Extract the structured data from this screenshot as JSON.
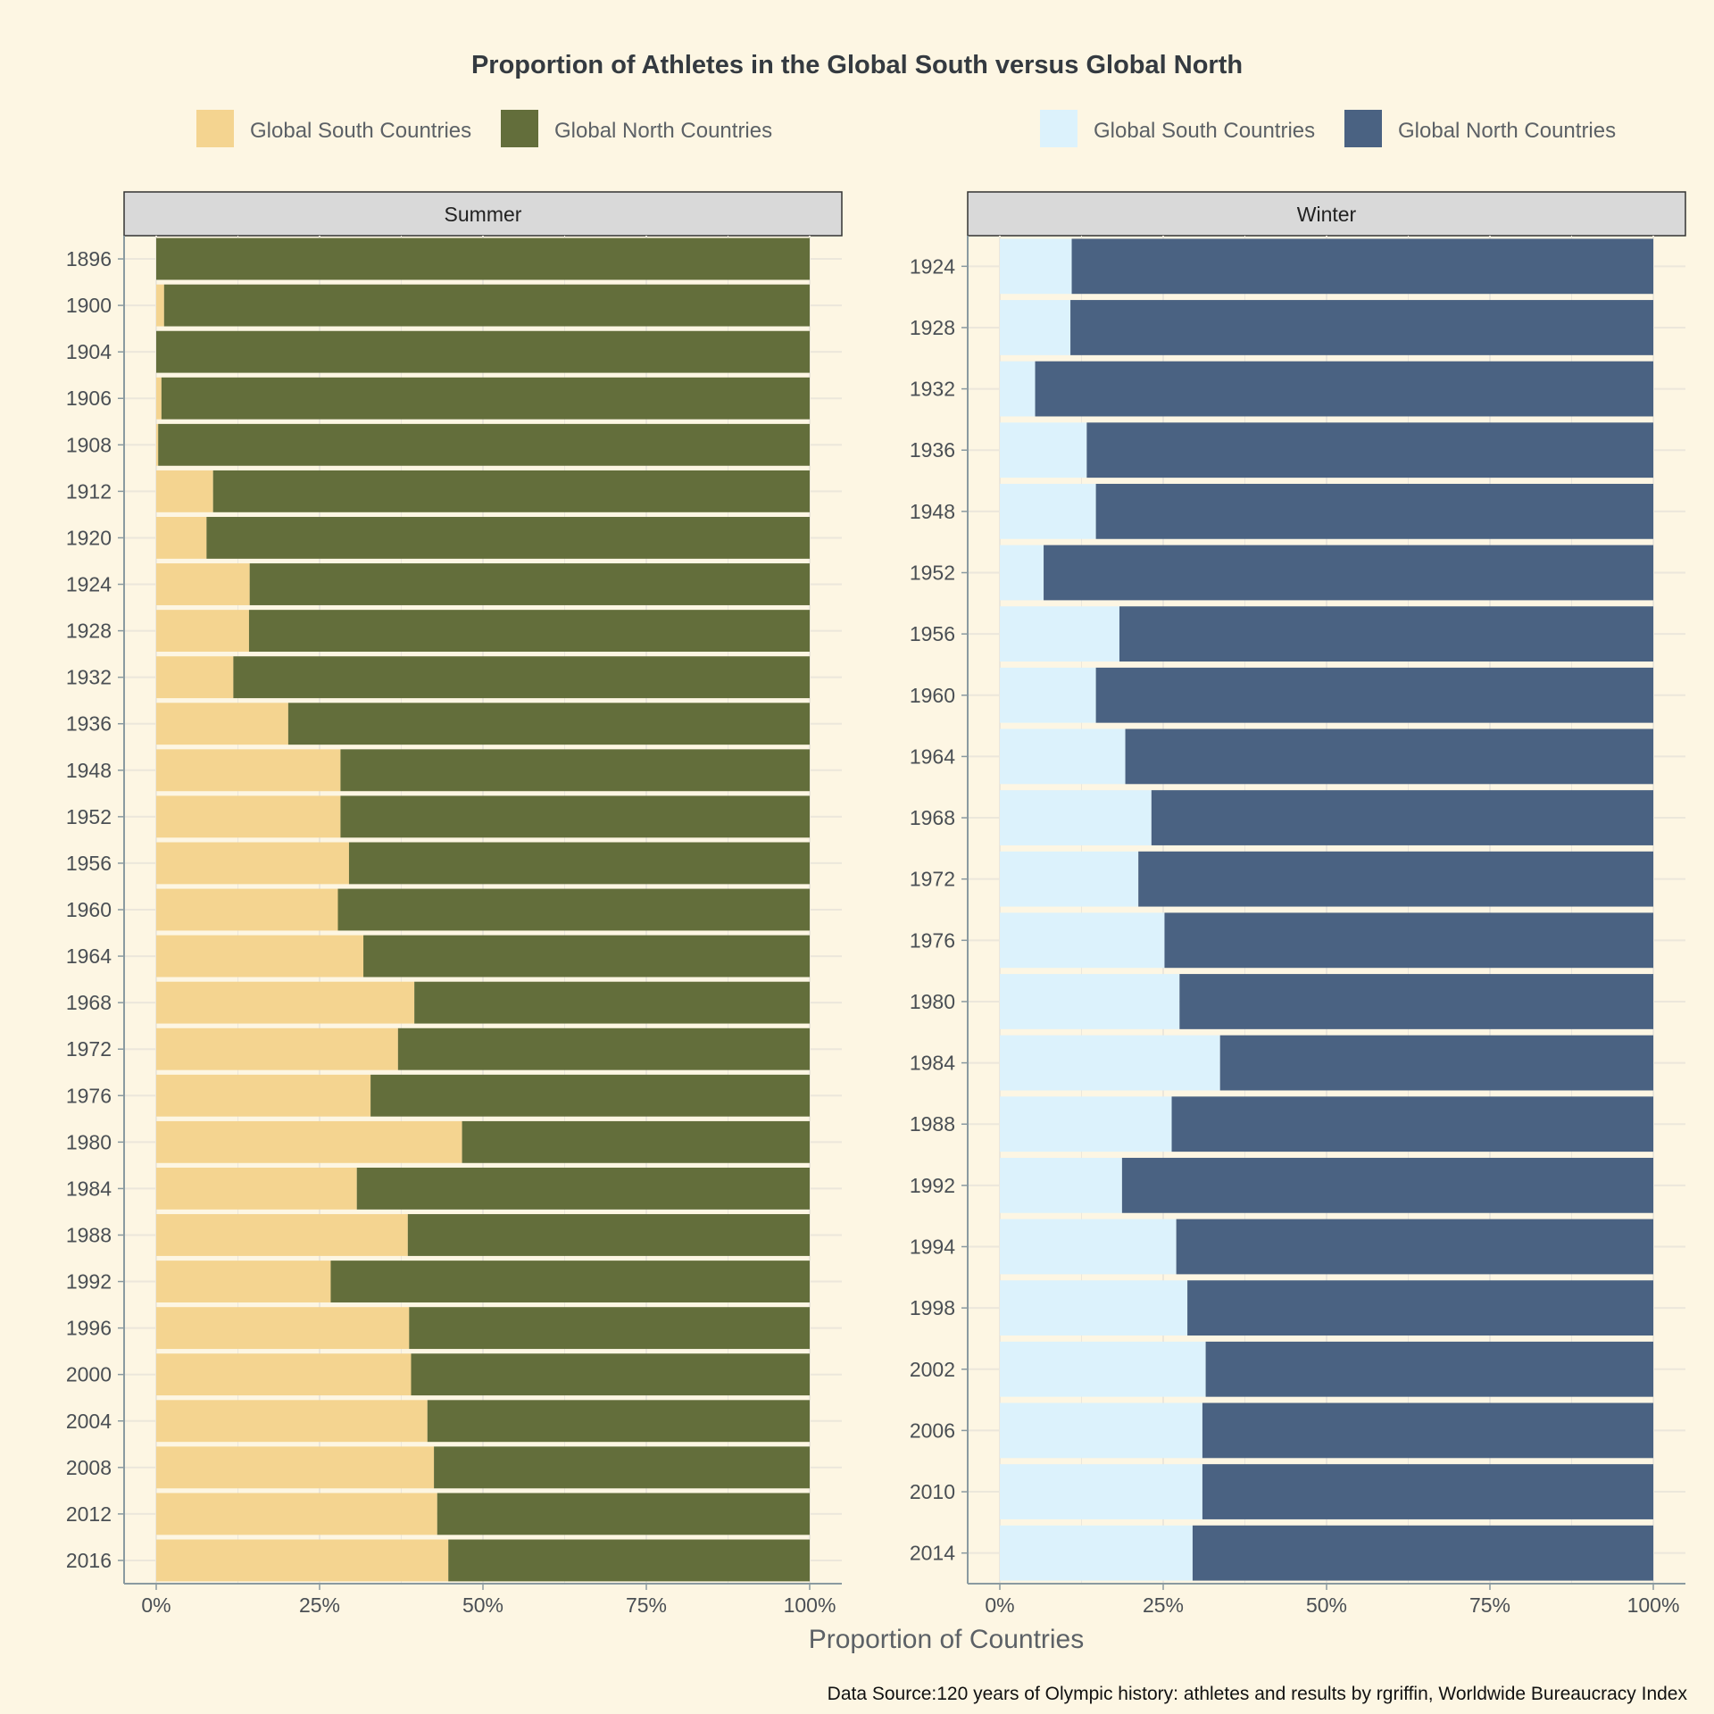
{
  "title": "Proportion of Athletes in the Global South versus Global North",
  "x_axis_title": "Proportion of Countries",
  "caption": "Data Source:120 years of Olympic history: athletes and results by rgriffin, Worldwide Bureaucracy Index",
  "legends": [
    {
      "items": [
        {
          "label": "Global South Countries",
          "color": "#f4d490"
        },
        {
          "label": "Global North Countries",
          "color": "#636e3b"
        }
      ]
    },
    {
      "items": [
        {
          "label": "Global South Countries",
          "color": "#dcf2fc"
        },
        {
          "label": "Global North Countries",
          "color": "#4a6282"
        }
      ]
    }
  ],
  "chart_data": [
    {
      "type": "bar",
      "orientation": "horizontal",
      "stacked": true,
      "panel": "Summer",
      "xlabel": "Proportion of Countries",
      "xlim": [
        0,
        1
      ],
      "xticks": [
        "0%",
        "25%",
        "50%",
        "75%",
        "100%"
      ],
      "grid": true,
      "colors": {
        "Global South Countries": "#f4d490",
        "Global North Countries": "#636e3b"
      },
      "categories": [
        "1896",
        "1900",
        "1904",
        "1906",
        "1908",
        "1912",
        "1920",
        "1924",
        "1928",
        "1932",
        "1936",
        "1948",
        "1952",
        "1956",
        "1960",
        "1964",
        "1968",
        "1972",
        "1976",
        "1980",
        "1984",
        "1988",
        "1992",
        "1996",
        "2000",
        "2004",
        "2008",
        "2012",
        "2016"
      ],
      "series": [
        {
          "name": "Global South Countries",
          "values": [
            0.0,
            0.012,
            0.0,
            0.008,
            0.003,
            0.087,
            0.077,
            0.143,
            0.142,
            0.118,
            0.202,
            0.282,
            0.282,
            0.295,
            0.278,
            0.317,
            0.395,
            0.37,
            0.328,
            0.468,
            0.307,
            0.385,
            0.267,
            0.387,
            0.39,
            0.415,
            0.425,
            0.43,
            0.447
          ]
        },
        {
          "name": "Global North Countries",
          "values": [
            1.0,
            0.988,
            1.0,
            0.992,
            0.997,
            0.913,
            0.923,
            0.857,
            0.858,
            0.882,
            0.798,
            0.718,
            0.718,
            0.705,
            0.722,
            0.683,
            0.605,
            0.63,
            0.672,
            0.532,
            0.693,
            0.615,
            0.733,
            0.613,
            0.61,
            0.585,
            0.575,
            0.57,
            0.553
          ]
        }
      ]
    },
    {
      "type": "bar",
      "orientation": "horizontal",
      "stacked": true,
      "panel": "Winter",
      "xlabel": "Proportion of Countries",
      "xlim": [
        0,
        1
      ],
      "xticks": [
        "0%",
        "25%",
        "50%",
        "75%",
        "100%"
      ],
      "grid": true,
      "colors": {
        "Global South Countries": "#dcf2fc",
        "Global North Countries": "#4a6282"
      },
      "categories": [
        "1924",
        "1928",
        "1932",
        "1936",
        "1948",
        "1952",
        "1956",
        "1960",
        "1964",
        "1968",
        "1972",
        "1976",
        "1980",
        "1984",
        "1988",
        "1992",
        "1994",
        "1998",
        "2002",
        "2006",
        "2010",
        "2014"
      ],
      "series": [
        {
          "name": "Global South Countries",
          "values": [
            0.11,
            0.108,
            0.054,
            0.133,
            0.147,
            0.067,
            0.183,
            0.147,
            0.192,
            0.232,
            0.212,
            0.252,
            0.275,
            0.337,
            0.263,
            0.187,
            0.27,
            0.287,
            0.315,
            0.31,
            0.31,
            0.295
          ]
        },
        {
          "name": "Global North Countries",
          "values": [
            0.89,
            0.892,
            0.946,
            0.867,
            0.853,
            0.933,
            0.817,
            0.853,
            0.808,
            0.768,
            0.788,
            0.748,
            0.725,
            0.663,
            0.737,
            0.813,
            0.73,
            0.713,
            0.685,
            0.69,
            0.69,
            0.705
          ]
        }
      ]
    }
  ]
}
